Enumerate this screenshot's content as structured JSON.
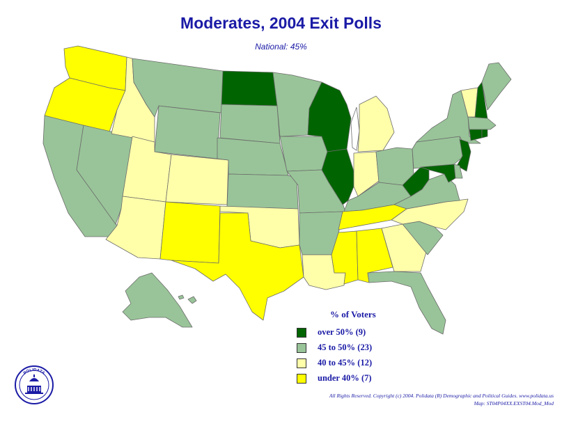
{
  "title": "Moderates, 2004 Exit Polls",
  "subtitle": "National: 45%",
  "legend": {
    "title": "% of Voters",
    "items": [
      {
        "label": "over 50% (9)",
        "color": "#006400"
      },
      {
        "label": "45 to 50% (23)",
        "color": "#99c499"
      },
      {
        "label": "40 to 45% (12)",
        "color": "#ffffaa"
      },
      {
        "label": "under 40% (7)",
        "color": "#ffff00"
      }
    ]
  },
  "map": {
    "states": [
      {
        "code": "WA",
        "category": 3
      },
      {
        "code": "OR",
        "category": 3
      },
      {
        "code": "CA",
        "category": 1
      },
      {
        "code": "NV",
        "category": 1
      },
      {
        "code": "ID",
        "category": 2
      },
      {
        "code": "MT",
        "category": 1
      },
      {
        "code": "WY",
        "category": 1
      },
      {
        "code": "UT",
        "category": 2
      },
      {
        "code": "AZ",
        "category": 2
      },
      {
        "code": "CO",
        "category": 2
      },
      {
        "code": "NM",
        "category": 3
      },
      {
        "code": "ND",
        "category": 0
      },
      {
        "code": "SD",
        "category": 1
      },
      {
        "code": "NE",
        "category": 1
      },
      {
        "code": "KS",
        "category": 1
      },
      {
        "code": "OK",
        "category": 2
      },
      {
        "code": "TX",
        "category": 3
      },
      {
        "code": "MN",
        "category": 1
      },
      {
        "code": "IA",
        "category": 1
      },
      {
        "code": "MO",
        "category": 1
      },
      {
        "code": "AR",
        "category": 1
      },
      {
        "code": "LA",
        "category": 2
      },
      {
        "code": "WI",
        "category": 0
      },
      {
        "code": "IL",
        "category": 0
      },
      {
        "code": "MI",
        "category": 2
      },
      {
        "code": "IN",
        "category": 2
      },
      {
        "code": "OH",
        "category": 1
      },
      {
        "code": "KY",
        "category": 1
      },
      {
        "code": "TN",
        "category": 3
      },
      {
        "code": "MS",
        "category": 3
      },
      {
        "code": "AL",
        "category": 3
      },
      {
        "code": "GA",
        "category": 2
      },
      {
        "code": "FL",
        "category": 1
      },
      {
        "code": "SC",
        "category": 1
      },
      {
        "code": "NC",
        "category": 2
      },
      {
        "code": "VA",
        "category": 1
      },
      {
        "code": "WV",
        "category": 0
      },
      {
        "code": "PA",
        "category": 1
      },
      {
        "code": "NY",
        "category": 1
      },
      {
        "code": "VT",
        "category": 2
      },
      {
        "code": "NH",
        "category": 0
      },
      {
        "code": "ME",
        "category": 1
      },
      {
        "code": "MA",
        "category": 1
      },
      {
        "code": "CT",
        "category": 0
      },
      {
        "code": "RI",
        "category": 0
      },
      {
        "code": "NJ",
        "category": 0
      },
      {
        "code": "DE",
        "category": 1
      },
      {
        "code": "MD",
        "category": 0
      },
      {
        "code": "AK",
        "category": 1
      },
      {
        "code": "HI",
        "category": 1
      }
    ]
  },
  "logo": {
    "text": "POLIDATA"
  },
  "footer": {
    "line1": "All Rights Reserved. Copyright (c) 2004. Polidata (R) Demographic and Political Guides. www.polidata.us",
    "line2": "Map: ST04P04XX.EXST04.Mod_Mod"
  }
}
